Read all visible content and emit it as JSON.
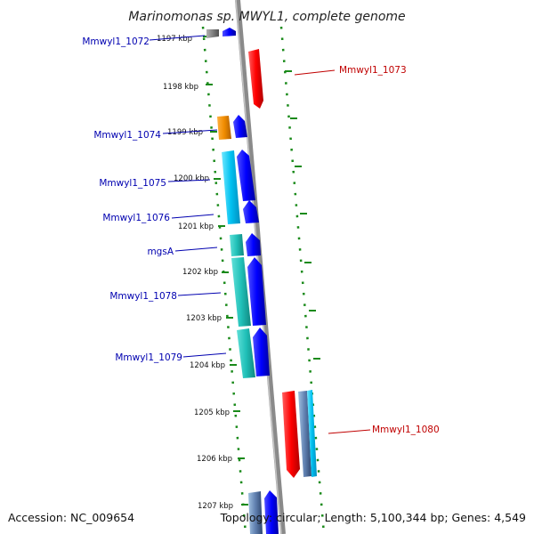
{
  "title": "Marinomonas sp. MWYL1, complete genome",
  "ticks": [
    {
      "label": "1197 kbp"
    },
    {
      "label": "1198 kbp"
    },
    {
      "label": "1199 kbp"
    },
    {
      "label": "1200 kbp"
    },
    {
      "label": "1201 kbp"
    },
    {
      "label": "1202 kbp"
    },
    {
      "label": "1203 kbp"
    },
    {
      "label": "1204 kbp"
    },
    {
      "label": "1205 kbp"
    },
    {
      "label": "1206 kbp"
    },
    {
      "label": "1207 kbp"
    }
  ],
  "genes": [
    {
      "label": "Mmwyl1_1072",
      "strand": "reverse",
      "color": "#0000b0"
    },
    {
      "label": "Mmwyl1_1073",
      "strand": "forward",
      "color": "#c00000"
    },
    {
      "label": "Mmwyl1_1074",
      "strand": "reverse",
      "color": "#0000b0"
    },
    {
      "label": "Mmwyl1_1075",
      "strand": "reverse",
      "color": "#0000b0"
    },
    {
      "label": "Mmwyl1_1076",
      "strand": "reverse",
      "color": "#0000b0"
    },
    {
      "label": "mgsA",
      "strand": "reverse",
      "color": "#0000b0"
    },
    {
      "label": "Mmwyl1_1078",
      "strand": "reverse",
      "color": "#0000b0"
    },
    {
      "label": "Mmwyl1_1079",
      "strand": "reverse",
      "color": "#0000b0"
    },
    {
      "label": "Mmwyl1_1080",
      "strand": "forward",
      "color": "#c00000"
    }
  ],
  "colors": {
    "backbone": "#8a8a8a",
    "dotted_border": "#1a8a1a",
    "forward_gene": "#ff0000",
    "reverse_gene": "#0000ff",
    "cyan_feature": "#00c8e8",
    "teal_feature": "#20c0b8",
    "orange_feature": "#f08c00",
    "gray_feature": "#808080"
  },
  "footer": {
    "accession": "Accession: NC_009654",
    "topology": "Topology: circular; Length: 5,100,344 bp; Genes: 4,549"
  }
}
